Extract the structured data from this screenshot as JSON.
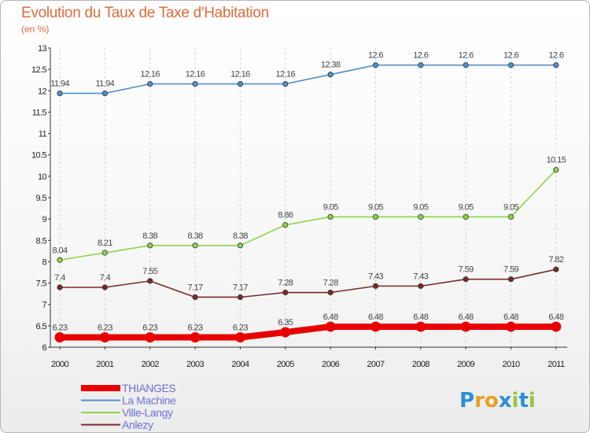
{
  "chart_data": {
    "type": "line",
    "title": "Evolution du Taux de Taxe d'Habitation",
    "subtitle": "(en %)",
    "xlabel": "",
    "ylabel": "",
    "x": [
      "2000",
      "2001",
      "2002",
      "2003",
      "2004",
      "2005",
      "2006",
      "2007",
      "2008",
      "2009",
      "2010",
      "2011"
    ],
    "ylim": [
      6,
      13
    ],
    "yticks": [
      "6",
      "6.5",
      "7",
      "7.5",
      "8",
      "8.5",
      "9",
      "9.5",
      "10",
      "10.5",
      "11",
      "11.5",
      "12",
      "12.5",
      "13"
    ],
    "grid": "vertical dashed",
    "legend_position": "bottom-left",
    "series": [
      {
        "name": "THIANGES",
        "color": "#e80000",
        "values": [
          6.23,
          6.23,
          6.23,
          6.23,
          6.23,
          6.35,
          6.48,
          6.48,
          6.48,
          6.48,
          6.48,
          6.48
        ],
        "labels": [
          "6.23",
          "6.23",
          "6.23",
          "6.23",
          "6.23",
          "6.35",
          "6.48",
          "6.48",
          "6.48",
          "6.48",
          "6.48",
          "6.48"
        ]
      },
      {
        "name": "La Machine",
        "color": "#4f90c9",
        "values": [
          11.94,
          11.94,
          12.16,
          12.16,
          12.16,
          12.16,
          12.38,
          12.6,
          12.6,
          12.6,
          12.6,
          12.6
        ],
        "labels": [
          "11.94",
          "11.94",
          "12.16",
          "12.16",
          "12.16",
          "12.16",
          "12.38",
          "12.6",
          "12.6",
          "12.6",
          "12.6",
          "12.6"
        ]
      },
      {
        "name": "Ville-Langy",
        "color": "#8ed44a",
        "values": [
          8.04,
          8.21,
          8.38,
          8.38,
          8.38,
          8.86,
          9.05,
          9.05,
          9.05,
          9.05,
          9.05,
          10.15
        ],
        "labels": [
          "8.04",
          "8.21",
          "8.38",
          "8.38",
          "8.38",
          "8.86",
          "9.05",
          "9.05",
          "9.05",
          "9.05",
          "9.05",
          "10.15"
        ]
      },
      {
        "name": "Anlezy",
        "color": "#7a2a2a",
        "values": [
          7.4,
          7.4,
          7.55,
          7.17,
          7.17,
          7.28,
          7.28,
          7.43,
          7.43,
          7.59,
          7.59,
          7.82
        ],
        "labels": [
          "7.4",
          "7.4",
          "7.55",
          "7.17",
          "7.17",
          "7.28",
          "7.28",
          "7.43",
          "7.43",
          "7.59",
          "7.59",
          "7.82"
        ]
      }
    ]
  },
  "logo": {
    "letters": [
      "P",
      "r",
      "o",
      "x",
      "i",
      "t",
      "i"
    ],
    "colors": [
      "#2a8fd6",
      "#e8a020",
      "#e8a020",
      "#2a8fd6",
      "#9ac43a",
      "#2a8fd6",
      "#9ac43a"
    ]
  }
}
